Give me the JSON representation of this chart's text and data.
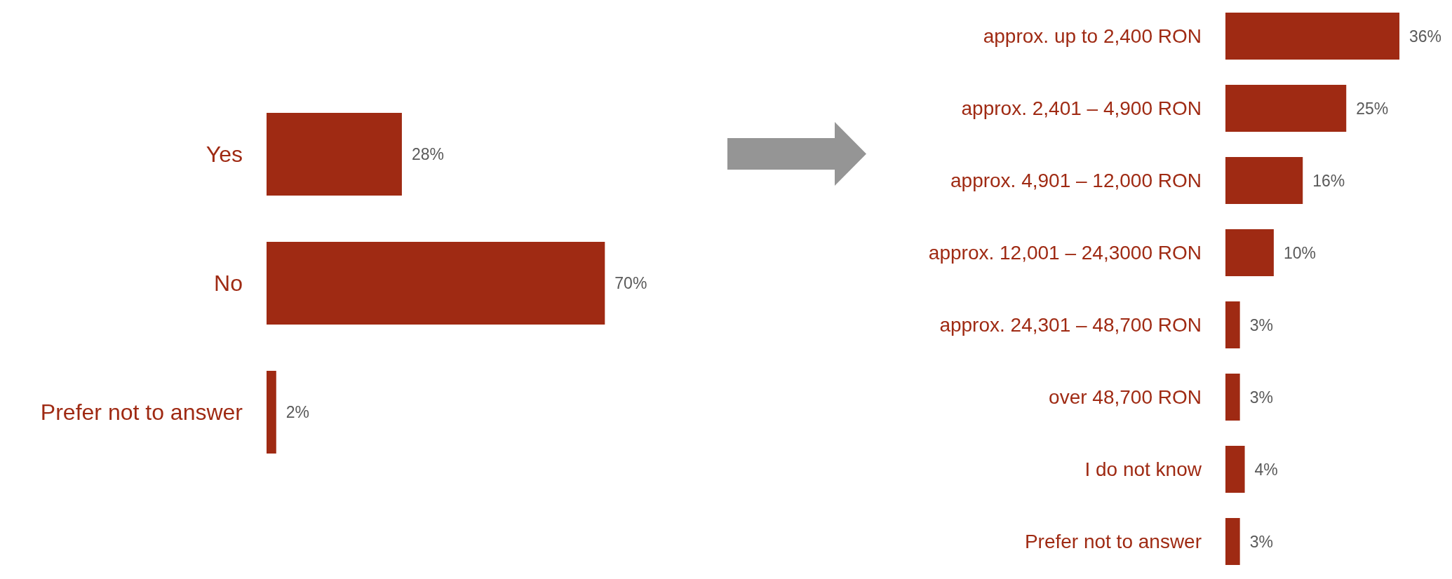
{
  "chart_data": [
    {
      "type": "bar",
      "orientation": "horizontal",
      "categories": [
        "Yes",
        "No",
        "Prefer not to answer"
      ],
      "values": [
        28,
        70,
        2
      ],
      "value_labels": [
        "28%",
        "70%",
        "2%"
      ],
      "color": "#9f2a13",
      "tick_labels": "y"
    },
    {
      "type": "bar",
      "orientation": "horizontal",
      "categories": [
        "approx. up to 2,400 RON",
        "approx. 2,401 – 4,900 RON",
        "approx. 4,901 – 12,000 RON",
        "approx. 12,001 – 24,3000 RON",
        "approx. 24,301 – 48,700 RON",
        "over 48,700 RON",
        "I do not know",
        "Prefer not to answer"
      ],
      "values": [
        36,
        25,
        16,
        10,
        3,
        3,
        4,
        3
      ],
      "value_labels": [
        "36%",
        "25%",
        "16%",
        "10%",
        "3%",
        "3%",
        "4%",
        "3%"
      ],
      "color": "#9f2a13",
      "tick_labels": "y"
    }
  ]
}
